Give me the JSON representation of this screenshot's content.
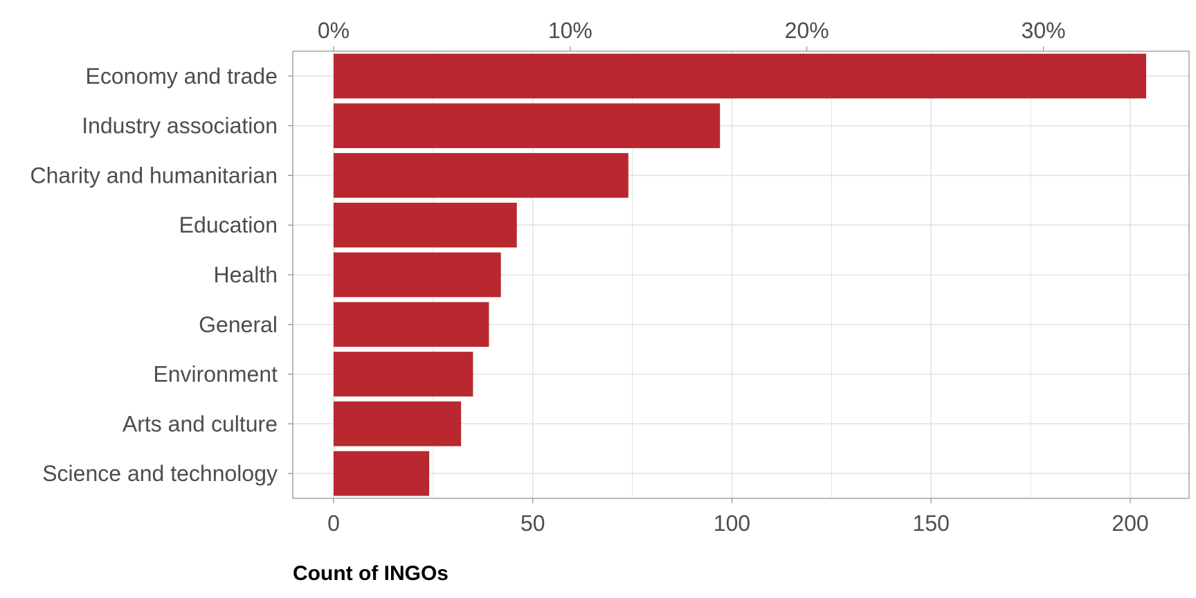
{
  "chart_data": {
    "type": "bar",
    "orientation": "horizontal",
    "categories": [
      "Economy and trade",
      "Industry association",
      "Charity and humanitarian",
      "Education",
      "Health",
      "General",
      "Environment",
      "Arts and culture",
      "Science and technology"
    ],
    "values": [
      204,
      97,
      74,
      46,
      42,
      39,
      35,
      32,
      24
    ],
    "xlabel": "Count of INGOs",
    "ylabel": "",
    "title": "",
    "xlim": [
      -10,
      215
    ],
    "x_ticks": [
      0,
      50,
      100,
      150,
      200
    ],
    "x_tick_labels": [
      "0",
      "50",
      "100",
      "150",
      "200"
    ],
    "top_axis_ticks": [
      0,
      10,
      20,
      30
    ],
    "top_axis_tick_labels": [
      "0%",
      "10%",
      "20%",
      "30%"
    ],
    "top_axis_total": 594,
    "grid": true,
    "bar_color": "#b8282e",
    "grid_color": "#e3e3e3",
    "legend": "none"
  }
}
